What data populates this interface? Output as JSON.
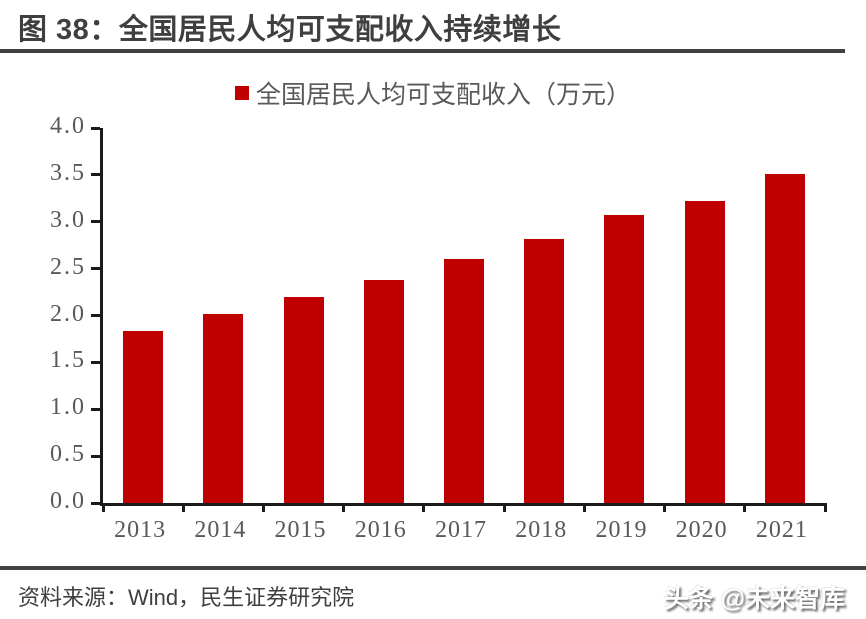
{
  "header": {
    "title": "图 38：全国居民人均可支配收入持续增长"
  },
  "legend": {
    "label": "全国居民人均可支配收入（万元）"
  },
  "footer": {
    "source": "资料来源：Wind，民生证券研究院",
    "watermark": "头条 @未来智库"
  },
  "colors": {
    "bar": "#c00000",
    "title_text": "#3f3f3f",
    "axis_line": "#1a1a1a",
    "axis_label": "#595959",
    "divider": "#404040"
  },
  "chart_data": {
    "type": "bar",
    "title": "图 38：全国居民人均可支配收入持续增长",
    "legend_entries": [
      "全国居民人均可支配收入（万元）"
    ],
    "legend_position": "top",
    "categories": [
      "2013",
      "2014",
      "2015",
      "2016",
      "2017",
      "2018",
      "2019",
      "2020",
      "2021"
    ],
    "values": [
      1.83,
      2.02,
      2.2,
      2.38,
      2.6,
      2.82,
      3.07,
      3.22,
      3.51
    ],
    "xlabel": "",
    "ylabel": "",
    "ylim": [
      0.0,
      4.0
    ],
    "ytick_step": 0.5,
    "ytick_labels": [
      "0.0",
      "0.5",
      "1.0",
      "1.5",
      "2.0",
      "2.5",
      "3.0",
      "3.5",
      "4.0"
    ],
    "grid": false,
    "bar_color": "#c00000"
  }
}
